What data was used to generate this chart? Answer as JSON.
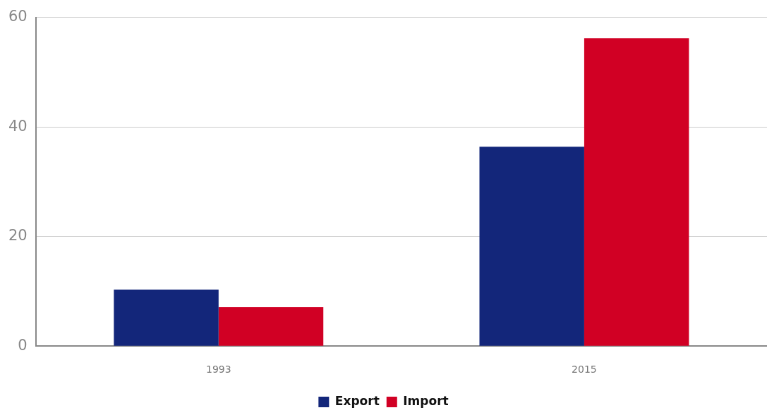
{
  "chart_data": {
    "type": "bar",
    "categories": [
      "1993",
      "2015"
    ],
    "series": [
      {
        "name": "Export",
        "color": "#13267a",
        "values": [
          10.3,
          36.4
        ]
      },
      {
        "name": "Import",
        "color": "#d10024",
        "values": [
          7.1,
          56.2
        ]
      }
    ],
    "ylim": [
      0,
      60
    ],
    "yticks": [
      0,
      20,
      40,
      60
    ],
    "grid": "y",
    "legend": "bottom"
  }
}
